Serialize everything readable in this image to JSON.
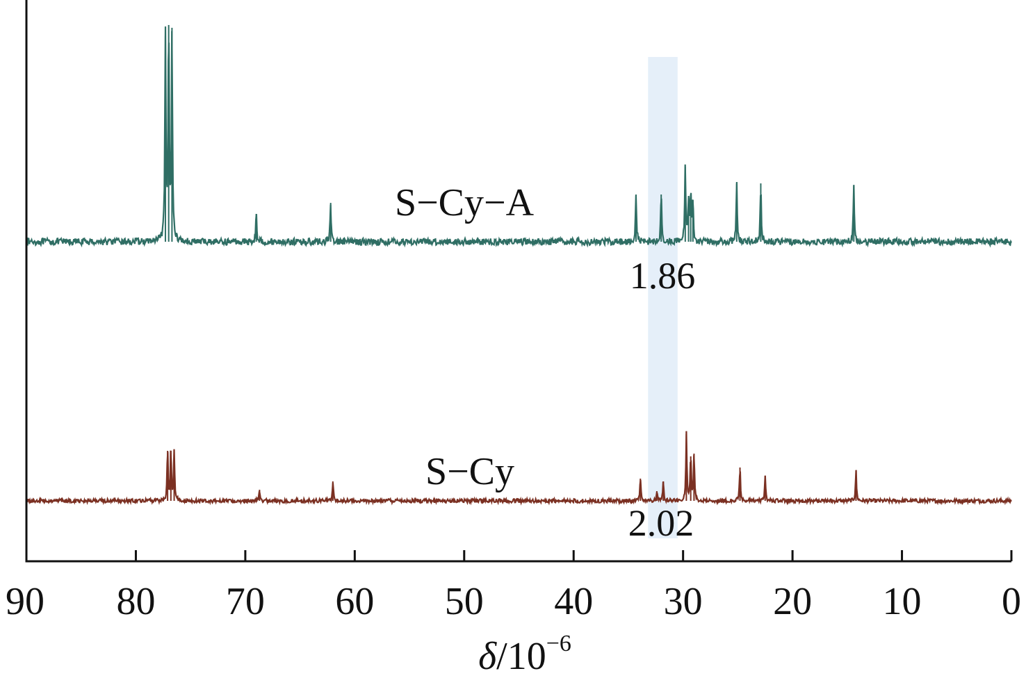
{
  "chart_data": {
    "type": "line",
    "xlabel": {
      "symbol": "δ",
      "rest": "/10",
      "exponent": "−6"
    },
    "xlim": [
      90,
      0
    ],
    "x_reversed": true,
    "ticks": [
      "90",
      "80",
      "70",
      "60",
      "50",
      "40",
      "30",
      "20",
      "10",
      "0"
    ],
    "tick_values": [
      90,
      80,
      70,
      60,
      50,
      40,
      30,
      20,
      10,
      0
    ],
    "highlight_region": {
      "from": 33.2,
      "to": 30.5,
      "color": "#dce9f7"
    },
    "series": [
      {
        "name": "S−Cy−A",
        "color": "#2f6e64",
        "offset": 0.82,
        "noise": 0.012,
        "peaks": [
          {
            "x": 77.3,
            "h": 0.74
          },
          {
            "x": 77.0,
            "h": 0.78
          },
          {
            "x": 76.7,
            "h": 0.77
          },
          {
            "x": 69.0,
            "h": 0.1
          },
          {
            "x": 62.2,
            "h": 0.14
          },
          {
            "x": 34.3,
            "h": 0.17
          },
          {
            "x": 32.0,
            "h": 0.17
          },
          {
            "x": 29.8,
            "h": 0.27
          },
          {
            "x": 29.5,
            "h": 0.15
          },
          {
            "x": 29.3,
            "h": 0.17
          },
          {
            "x": 29.1,
            "h": 0.15
          },
          {
            "x": 25.1,
            "h": 0.21
          },
          {
            "x": 22.9,
            "h": 0.21
          },
          {
            "x": 14.4,
            "h": 0.2
          }
        ],
        "integration": "1.86"
      },
      {
        "name": "S−Cy",
        "color": "#7b3022",
        "offset": 0.0,
        "noise": 0.007,
        "peaks": [
          {
            "x": 77.1,
            "h": 0.18
          },
          {
            "x": 76.8,
            "h": 0.18
          },
          {
            "x": 76.5,
            "h": 0.18
          },
          {
            "x": 68.7,
            "h": 0.04
          },
          {
            "x": 62.0,
            "h": 0.07
          },
          {
            "x": 33.9,
            "h": 0.08
          },
          {
            "x": 32.4,
            "h": 0.035
          },
          {
            "x": 31.8,
            "h": 0.07
          },
          {
            "x": 29.7,
            "h": 0.24
          },
          {
            "x": 29.3,
            "h": 0.16
          },
          {
            "x": 29.0,
            "h": 0.17
          },
          {
            "x": 24.8,
            "h": 0.12
          },
          {
            "x": 22.5,
            "h": 0.09
          },
          {
            "x": 14.2,
            "h": 0.11
          }
        ],
        "integration": "2.02"
      }
    ]
  }
}
